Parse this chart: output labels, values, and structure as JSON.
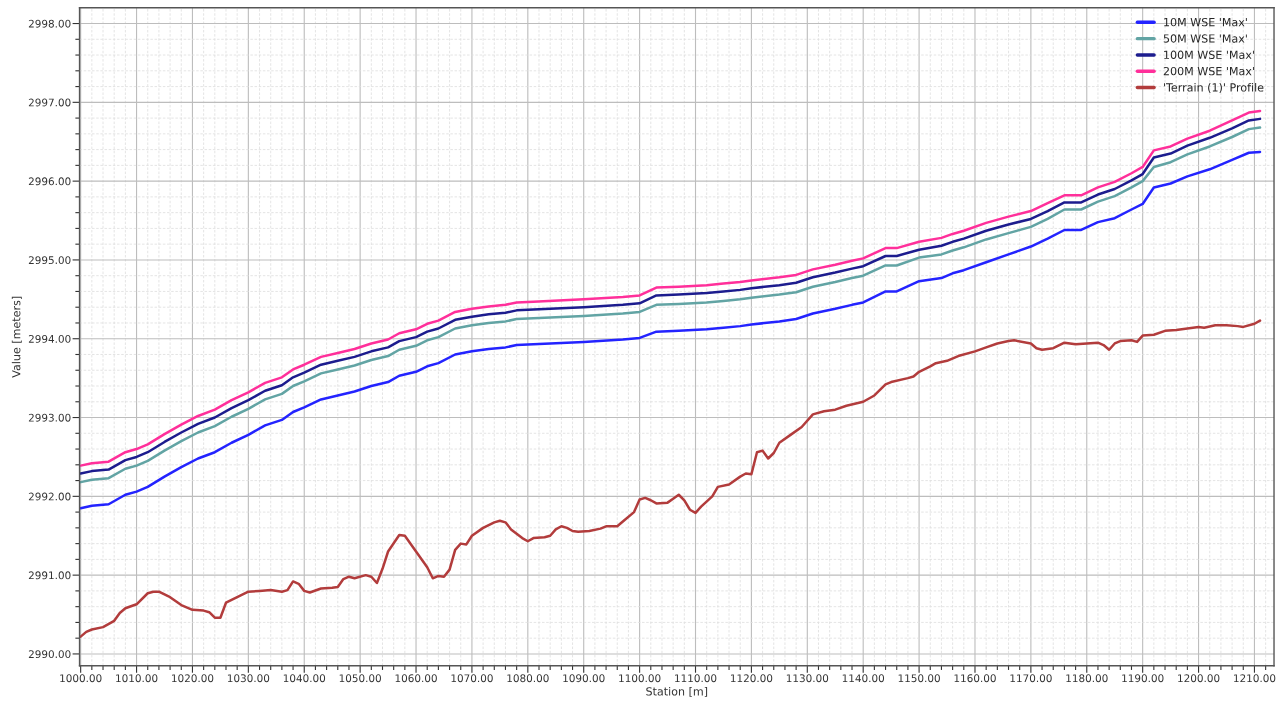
{
  "chart_data": {
    "type": "line",
    "xlabel": "Station [m]",
    "ylabel": "Value [meters]",
    "x": [
      1000,
      1002,
      1005,
      1008,
      1010,
      1012,
      1015,
      1018,
      1021,
      1024,
      1027,
      1030,
      1033,
      1036,
      1038,
      1040,
      1043,
      1046,
      1049,
      1052,
      1055,
      1057,
      1060,
      1062,
      1064,
      1067,
      1070,
      1073,
      1076,
      1078,
      1081,
      1090,
      1097,
      1100,
      1103,
      1107,
      1112,
      1115,
      1118,
      1120,
      1125,
      1128,
      1131,
      1135,
      1138,
      1140,
      1144,
      1146,
      1150,
      1154,
      1156,
      1158,
      1162,
      1166,
      1170,
      1173,
      1176,
      1179,
      1182,
      1185,
      1188,
      1190,
      1192,
      1195,
      1198,
      1202,
      1206,
      1209,
      1211
    ],
    "series": [
      {
        "name": "10M WSE 'Max'",
        "color": "#2323ff",
        "values": [
          2991.85,
          2991.88,
          2991.9,
          2992.02,
          2992.06,
          2992.12,
          2992.25,
          2992.37,
          2992.48,
          2992.56,
          2992.68,
          2992.78,
          2992.9,
          2992.97,
          2993.07,
          2993.13,
          2993.23,
          2993.28,
          2993.33,
          2993.4,
          2993.45,
          2993.53,
          2993.58,
          2993.65,
          2993.69,
          2993.8,
          2993.84,
          2993.87,
          2993.89,
          2993.92,
          2993.93,
          2993.96,
          2993.99,
          2994.01,
          2994.09,
          2994.1,
          2994.12,
          2994.14,
          2994.16,
          2994.18,
          2994.22,
          2994.25,
          2994.32,
          2994.38,
          2994.43,
          2994.46,
          2994.6,
          2994.6,
          2994.73,
          2994.77,
          2994.83,
          2994.87,
          2994.97,
          2995.07,
          2995.17,
          2995.27,
          2995.38,
          2995.38,
          2995.48,
          2995.53,
          2995.64,
          2995.71,
          2995.92,
          2995.97,
          2996.06,
          2996.15,
          2996.27,
          2996.36,
          2996.37
        ]
      },
      {
        "name": "50M WSE 'Max'",
        "color": "#62a4a4",
        "values": [
          2992.18,
          2992.21,
          2992.23,
          2992.35,
          2992.39,
          2992.45,
          2992.58,
          2992.7,
          2992.81,
          2992.89,
          2993.01,
          2993.11,
          2993.23,
          2993.3,
          2993.4,
          2993.46,
          2993.56,
          2993.61,
          2993.66,
          2993.73,
          2993.78,
          2993.86,
          2993.91,
          2993.98,
          2994.02,
          2994.13,
          2994.17,
          2994.2,
          2994.22,
          2994.25,
          2994.26,
          2994.29,
          2994.32,
          2994.34,
          2994.43,
          2994.44,
          2994.46,
          2994.48,
          2994.5,
          2994.52,
          2994.56,
          2994.59,
          2994.66,
          2994.72,
          2994.77,
          2994.8,
          2994.93,
          2994.93,
          2995.03,
          2995.07,
          2995.12,
          2995.16,
          2995.26,
          2995.34,
          2995.42,
          2995.52,
          2995.64,
          2995.64,
          2995.74,
          2995.81,
          2995.92,
          2996.0,
          2996.18,
          2996.24,
          2996.34,
          2996.44,
          2996.56,
          2996.66,
          2996.68
        ]
      },
      {
        "name": "100M WSE 'Max'",
        "color": "#1c1c8e",
        "values": [
          2992.29,
          2992.32,
          2992.34,
          2992.46,
          2992.5,
          2992.56,
          2992.69,
          2992.81,
          2992.92,
          2993.0,
          2993.12,
          2993.22,
          2993.34,
          2993.41,
          2993.51,
          2993.57,
          2993.67,
          2993.72,
          2993.77,
          2993.84,
          2993.89,
          2993.97,
          2994.02,
          2994.09,
          2994.13,
          2994.24,
          2994.28,
          2994.31,
          2994.33,
          2994.36,
          2994.37,
          2994.4,
          2994.43,
          2994.45,
          2994.55,
          2994.56,
          2994.58,
          2994.6,
          2994.62,
          2994.64,
          2994.68,
          2994.71,
          2994.78,
          2994.84,
          2994.89,
          2994.92,
          2995.05,
          2995.05,
          2995.13,
          2995.18,
          2995.23,
          2995.27,
          2995.37,
          2995.45,
          2995.52,
          2995.62,
          2995.73,
          2995.73,
          2995.83,
          2995.9,
          2996.01,
          2996.09,
          2996.3,
          2996.35,
          2996.45,
          2996.55,
          2996.67,
          2996.77,
          2996.79
        ]
      },
      {
        "name": "200M WSE 'Max'",
        "color": "#ff2f9a",
        "values": [
          2992.39,
          2992.42,
          2992.44,
          2992.56,
          2992.6,
          2992.66,
          2992.79,
          2992.91,
          2993.02,
          2993.1,
          2993.22,
          2993.32,
          2993.44,
          2993.51,
          2993.61,
          2993.67,
          2993.77,
          2993.82,
          2993.87,
          2993.94,
          2993.99,
          2994.07,
          2994.12,
          2994.19,
          2994.23,
          2994.34,
          2994.38,
          2994.41,
          2994.43,
          2994.46,
          2994.47,
          2994.5,
          2994.53,
          2994.55,
          2994.65,
          2994.66,
          2994.68,
          2994.7,
          2994.72,
          2994.74,
          2994.78,
          2994.81,
          2994.88,
          2994.94,
          2994.99,
          2995.02,
          2995.15,
          2995.15,
          2995.23,
          2995.28,
          2995.33,
          2995.37,
          2995.47,
          2995.55,
          2995.62,
          2995.72,
          2995.82,
          2995.82,
          2995.92,
          2995.99,
          2996.1,
          2996.18,
          2996.39,
          2996.44,
          2996.54,
          2996.64,
          2996.77,
          2996.87,
          2996.89
        ]
      },
      {
        "name": "'Terrain (1)' Profile",
        "color": "#b23c3c",
        "x": [
          1000,
          1001,
          1002,
          1004,
          1006,
          1007,
          1008,
          1010,
          1012,
          1013,
          1014,
          1016,
          1018,
          1020,
          1022,
          1023,
          1024,
          1025,
          1026,
          1028,
          1030,
          1032,
          1034,
          1036,
          1037,
          1038,
          1039,
          1040,
          1041,
          1043,
          1045,
          1046,
          1047,
          1048,
          1049,
          1051,
          1052,
          1053,
          1054,
          1055,
          1057,
          1058,
          1060,
          1062,
          1063,
          1064,
          1065,
          1066,
          1067,
          1068,
          1069,
          1070,
          1072,
          1074,
          1075,
          1076,
          1077,
          1079,
          1080,
          1081,
          1083,
          1084,
          1085,
          1086,
          1087,
          1088,
          1089,
          1091,
          1093,
          1094,
          1096,
          1097,
          1099,
          1100,
          1101,
          1102,
          1103,
          1105,
          1106,
          1107,
          1108,
          1109,
          1110,
          1111,
          1113,
          1114,
          1116,
          1118,
          1119,
          1120,
          1121,
          1122,
          1123,
          1124,
          1125,
          1127,
          1129,
          1131,
          1133,
          1135,
          1137,
          1140,
          1142,
          1144,
          1145,
          1148,
          1149,
          1150,
          1152,
          1153,
          1155,
          1157,
          1160,
          1162,
          1164,
          1166,
          1167,
          1170,
          1171,
          1172,
          1174,
          1176,
          1178,
          1180,
          1182,
          1183,
          1184,
          1185,
          1186,
          1188,
          1189,
          1190,
          1192,
          1194,
          1196,
          1198,
          1200,
          1201,
          1203,
          1205,
          1207,
          1208,
          1210,
          1211
        ],
        "values": [
          2990.22,
          2990.28,
          2990.31,
          2990.34,
          2990.42,
          2990.52,
          2990.58,
          2990.63,
          2990.77,
          2990.79,
          2990.79,
          2990.72,
          2990.62,
          2990.56,
          2990.55,
          2990.53,
          2990.46,
          2990.46,
          2990.65,
          2990.72,
          2990.79,
          2990.8,
          2990.81,
          2990.79,
          2990.81,
          2990.92,
          2990.89,
          2990.8,
          2990.78,
          2990.83,
          2990.84,
          2990.85,
          2990.95,
          2990.98,
          2990.96,
          2991.0,
          2990.98,
          2990.9,
          2991.08,
          2991.3,
          2991.51,
          2991.5,
          2991.3,
          2991.1,
          2990.96,
          2990.99,
          2990.98,
          2991.07,
          2991.32,
          2991.4,
          2991.39,
          2991.5,
          2991.6,
          2991.67,
          2991.69,
          2991.67,
          2991.58,
          2991.47,
          2991.43,
          2991.47,
          2991.48,
          2991.5,
          2991.58,
          2991.62,
          2991.6,
          2991.56,
          2991.55,
          2991.56,
          2991.59,
          2991.62,
          2991.62,
          2991.68,
          2991.8,
          2991.96,
          2991.98,
          2991.95,
          2991.91,
          2991.92,
          2991.97,
          2992.02,
          2991.95,
          2991.83,
          2991.79,
          2991.87,
          2992.0,
          2992.12,
          2992.15,
          2992.25,
          2992.29,
          2992.28,
          2992.56,
          2992.58,
          2992.48,
          2992.55,
          2992.68,
          2992.78,
          2992.88,
          2993.04,
          2993.08,
          2993.1,
          2993.15,
          2993.2,
          2993.28,
          2993.42,
          2993.45,
          2993.5,
          2993.52,
          2993.58,
          2993.65,
          2993.69,
          2993.72,
          2993.78,
          2993.84,
          2993.89,
          2993.94,
          2993.97,
          2993.98,
          2993.94,
          2993.88,
          2993.86,
          2993.88,
          2993.95,
          2993.93,
          2993.94,
          2993.95,
          2993.92,
          2993.86,
          2993.94,
          2993.97,
          2993.98,
          2993.96,
          2994.04,
          2994.05,
          2994.1,
          2994.11,
          2994.13,
          2994.15,
          2994.14,
          2994.17,
          2994.17,
          2994.16,
          2994.15,
          2994.19,
          2994.23
        ]
      }
    ],
    "xlim": [
      999.8,
      1213.5
    ],
    "ylim": [
      2989.85,
      2998.2
    ],
    "xticks": [
      {
        "value": 1000,
        "label": "1000.00"
      },
      {
        "value": 1002,
        "label": null
      },
      {
        "value": 1004,
        "label": null
      },
      {
        "value": 1006,
        "label": null
      },
      {
        "value": 1008,
        "label": null
      },
      {
        "value": 1010,
        "label": "1010.00"
      },
      {
        "value": 1012,
        "label": null
      },
      {
        "value": 1014,
        "label": null
      },
      {
        "value": 1016,
        "label": null
      },
      {
        "value": 1018,
        "label": null
      },
      {
        "value": 1020,
        "label": "1020.00"
      },
      {
        "value": 1022,
        "label": null
      },
      {
        "value": 1024,
        "label": null
      },
      {
        "value": 1026,
        "label": null
      },
      {
        "value": 1028,
        "label": null
      },
      {
        "value": 1030,
        "label": "1030.00"
      },
      {
        "value": 1032,
        "label": null
      },
      {
        "value": 1034,
        "label": null
      },
      {
        "value": 1036,
        "label": null
      },
      {
        "value": 1038,
        "label": null
      },
      {
        "value": 1040,
        "label": "1040.00"
      },
      {
        "value": 1042,
        "label": null
      },
      {
        "value": 1044,
        "label": null
      },
      {
        "value": 1046,
        "label": null
      },
      {
        "value": 1048,
        "label": null
      },
      {
        "value": 1050,
        "label": "1050.00"
      },
      {
        "value": 1052,
        "label": null
      },
      {
        "value": 1054,
        "label": null
      },
      {
        "value": 1056,
        "label": null
      },
      {
        "value": 1058,
        "label": null
      },
      {
        "value": 1060,
        "label": "1060.00"
      },
      {
        "value": 1062,
        "label": null
      },
      {
        "value": 1064,
        "label": null
      },
      {
        "value": 1066,
        "label": null
      },
      {
        "value": 1068,
        "label": null
      },
      {
        "value": 1070,
        "label": "1070.00"
      },
      {
        "value": 1072,
        "label": null
      },
      {
        "value": 1074,
        "label": null
      },
      {
        "value": 1076,
        "label": null
      },
      {
        "value": 1078,
        "label": null
      },
      {
        "value": 1080,
        "label": "1080.00"
      },
      {
        "value": 1082,
        "label": null
      },
      {
        "value": 1084,
        "label": null
      },
      {
        "value": 1086,
        "label": null
      },
      {
        "value": 1088,
        "label": null
      },
      {
        "value": 1090,
        "label": "1090.00"
      },
      {
        "value": 1092,
        "label": null
      },
      {
        "value": 1094,
        "label": null
      },
      {
        "value": 1096,
        "label": null
      },
      {
        "value": 1098,
        "label": null
      },
      {
        "value": 1100,
        "label": "1100.00"
      },
      {
        "value": 1102,
        "label": null
      },
      {
        "value": 1104,
        "label": null
      },
      {
        "value": 1106,
        "label": null
      },
      {
        "value": 1108,
        "label": null
      },
      {
        "value": 1110,
        "label": "1110.00"
      },
      {
        "value": 1112,
        "label": null
      },
      {
        "value": 1114,
        "label": null
      },
      {
        "value": 1116,
        "label": null
      },
      {
        "value": 1118,
        "label": null
      },
      {
        "value": 1120,
        "label": "1120.00"
      },
      {
        "value": 1122,
        "label": null
      },
      {
        "value": 1124,
        "label": null
      },
      {
        "value": 1126,
        "label": null
      },
      {
        "value": 1128,
        "label": null
      },
      {
        "value": 1130,
        "label": "1130.00"
      },
      {
        "value": 1132,
        "label": null
      },
      {
        "value": 1134,
        "label": null
      },
      {
        "value": 1136,
        "label": null
      },
      {
        "value": 1138,
        "label": null
      },
      {
        "value": 1140,
        "label": "1140.00"
      },
      {
        "value": 1142,
        "label": null
      },
      {
        "value": 1144,
        "label": null
      },
      {
        "value": 1146,
        "label": null
      },
      {
        "value": 1148,
        "label": null
      },
      {
        "value": 1150,
        "label": "1150.00"
      },
      {
        "value": 1152,
        "label": null
      },
      {
        "value": 1154,
        "label": null
      },
      {
        "value": 1156,
        "label": null
      },
      {
        "value": 1158,
        "label": null
      },
      {
        "value": 1160,
        "label": "1160.00"
      },
      {
        "value": 1162,
        "label": null
      },
      {
        "value": 1164,
        "label": null
      },
      {
        "value": 1166,
        "label": null
      },
      {
        "value": 1168,
        "label": null
      },
      {
        "value": 1170,
        "label": "1170.00"
      },
      {
        "value": 1172,
        "label": null
      },
      {
        "value": 1174,
        "label": null
      },
      {
        "value": 1176,
        "label": null
      },
      {
        "value": 1178,
        "label": null
      },
      {
        "value": 1180,
        "label": "1180.00"
      },
      {
        "value": 1182,
        "label": null
      },
      {
        "value": 1184,
        "label": null
      },
      {
        "value": 1186,
        "label": null
      },
      {
        "value": 1188,
        "label": null
      },
      {
        "value": 1190,
        "label": "1190.00"
      },
      {
        "value": 1192,
        "label": null
      },
      {
        "value": 1194,
        "label": null
      },
      {
        "value": 1196,
        "label": null
      },
      {
        "value": 1198,
        "label": null
      },
      {
        "value": 1200,
        "label": "1200.00"
      },
      {
        "value": 1202,
        "label": null
      },
      {
        "value": 1204,
        "label": null
      },
      {
        "value": 1206,
        "label": null
      },
      {
        "value": 1208,
        "label": null
      },
      {
        "value": 1210,
        "label": "1210.00"
      },
      {
        "value": 1212,
        "label": null
      }
    ],
    "yticks": [
      {
        "value": 2990,
        "label": "2990.00"
      },
      {
        "value": 2990.2,
        "label": null
      },
      {
        "value": 2990.4,
        "label": null
      },
      {
        "value": 2990.6,
        "label": null
      },
      {
        "value": 2990.8,
        "label": null
      },
      {
        "value": 2991,
        "label": "2991.00"
      },
      {
        "value": 2991.2,
        "label": null
      },
      {
        "value": 2991.4,
        "label": null
      },
      {
        "value": 2991.6,
        "label": null
      },
      {
        "value": 2991.8,
        "label": null
      },
      {
        "value": 2992,
        "label": "2992.00"
      },
      {
        "value": 2992.2,
        "label": null
      },
      {
        "value": 2992.4,
        "label": null
      },
      {
        "value": 2992.6,
        "label": null
      },
      {
        "value": 2992.8,
        "label": null
      },
      {
        "value": 2993,
        "label": "2993.00"
      },
      {
        "value": 2993.2,
        "label": null
      },
      {
        "value": 2993.4,
        "label": null
      },
      {
        "value": 2993.6,
        "label": null
      },
      {
        "value": 2993.8,
        "label": null
      },
      {
        "value": 2994,
        "label": "2994.00"
      },
      {
        "value": 2994.2,
        "label": null
      },
      {
        "value": 2994.4,
        "label": null
      },
      {
        "value": 2994.6,
        "label": null
      },
      {
        "value": 2994.8,
        "label": null
      },
      {
        "value": 2995,
        "label": "2995.00"
      },
      {
        "value": 2995.2,
        "label": null
      },
      {
        "value": 2995.4,
        "label": null
      },
      {
        "value": 2995.6,
        "label": null
      },
      {
        "value": 2995.8,
        "label": null
      },
      {
        "value": 2996,
        "label": "2996.00"
      },
      {
        "value": 2996.2,
        "label": null
      },
      {
        "value": 2996.4,
        "label": null
      },
      {
        "value": 2996.6,
        "label": null
      },
      {
        "value": 2996.8,
        "label": null
      },
      {
        "value": 2997,
        "label": "2997.00"
      },
      {
        "value": 2997.2,
        "label": null
      },
      {
        "value": 2997.4,
        "label": null
      },
      {
        "value": 2997.6,
        "label": null
      },
      {
        "value": 2997.8,
        "label": null
      },
      {
        "value": 2998,
        "label": "2998.00"
      }
    ],
    "grid": true,
    "legend": "top right",
    "line_style": "solid"
  }
}
